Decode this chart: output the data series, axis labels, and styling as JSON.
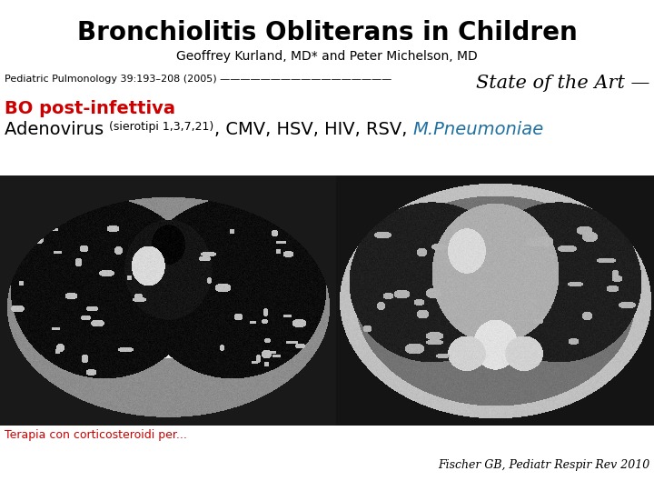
{
  "bg_color": "#ffffff",
  "header_bg": "#1a5f9e",
  "title_text": "Bronchiolitis Obliterans in Children",
  "author_text": "Geoffrey Kurland, MD* and Peter Michelson, MD",
  "journal_left": "Pediatric Pulmonology 39:193–208 (2005) —————————————————",
  "state_of_art_text": "State of the Art —",
  "bo_label": "BO post-infettiva",
  "adeno_text": "Adenovirus ",
  "siero_text": "(sierotipi 1,3,7,21)",
  "rest_text": ", CMV, HSV, HIV, RSV, ",
  "pneumo_text": "M.Pneumoniae",
  "bottom_left_text": "Terapia con corticosteroidi per...",
  "citation": "Fischer GB, Pediatr Respir Rev 2010",
  "title_color": "#000000",
  "title_fontsize": 20,
  "author_fontsize": 10,
  "journal_fontsize": 8,
  "bo_color": "#cc0000",
  "bo_fontsize": 14,
  "line2_fontsize": 14,
  "siero_fontsize": 9,
  "blue_color": "#2070a0",
  "state_fontsize": 15,
  "arc_color": "#1a5f9e"
}
